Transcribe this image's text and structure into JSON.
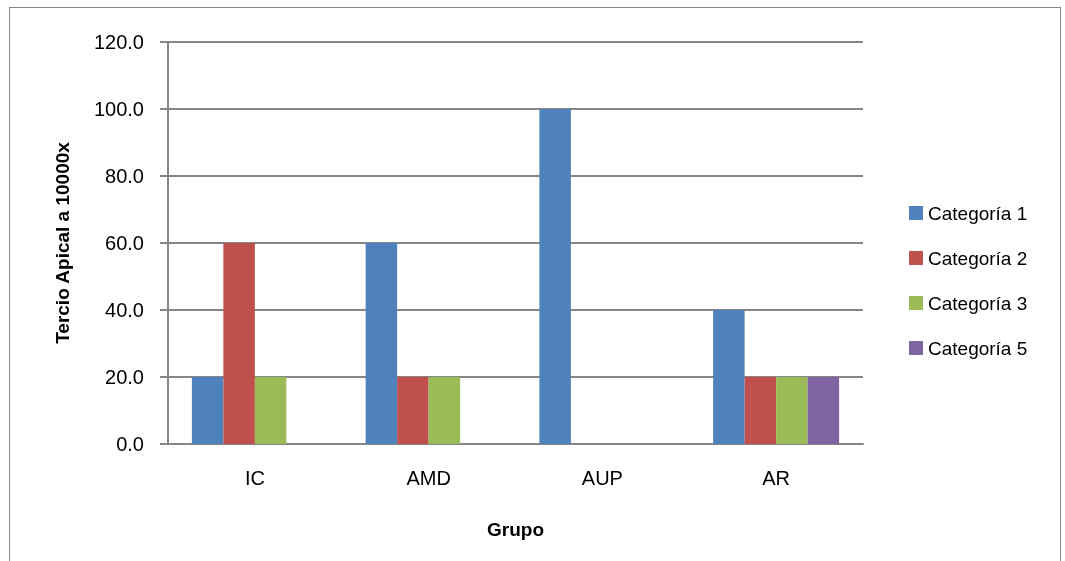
{
  "chart_data": {
    "type": "bar",
    "xlabel": "Grupo",
    "ylabel": "Tercio Apical a 10000x",
    "categories": [
      "IC",
      "AMD",
      "AUP",
      "AR"
    ],
    "series": [
      {
        "name": "Categoría 1",
        "color": "#4f81bd",
        "values": [
          20,
          60,
          100,
          40
        ]
      },
      {
        "name": "Categoría 2",
        "color": "#c0504d",
        "values": [
          60,
          20,
          0,
          20
        ]
      },
      {
        "name": "Categoría 3",
        "color": "#9bbb59",
        "values": [
          20,
          20,
          0,
          20
        ]
      },
      {
        "name": "Categoría 5",
        "color": "#8064a2",
        "values": [
          0,
          0,
          0,
          20
        ]
      }
    ],
    "ylim": [
      0,
      120
    ],
    "yticks": [
      {
        "value": 0,
        "label": "0.0"
      },
      {
        "value": 20,
        "label": "20.0"
      },
      {
        "value": 40,
        "label": "40.0"
      },
      {
        "value": 60,
        "label": "60.0"
      },
      {
        "value": 80,
        "label": "80.0"
      },
      {
        "value": 100,
        "label": "100.0"
      },
      {
        "value": 120,
        "label": "120.0"
      }
    ],
    "grid": "y",
    "legend": "right"
  }
}
